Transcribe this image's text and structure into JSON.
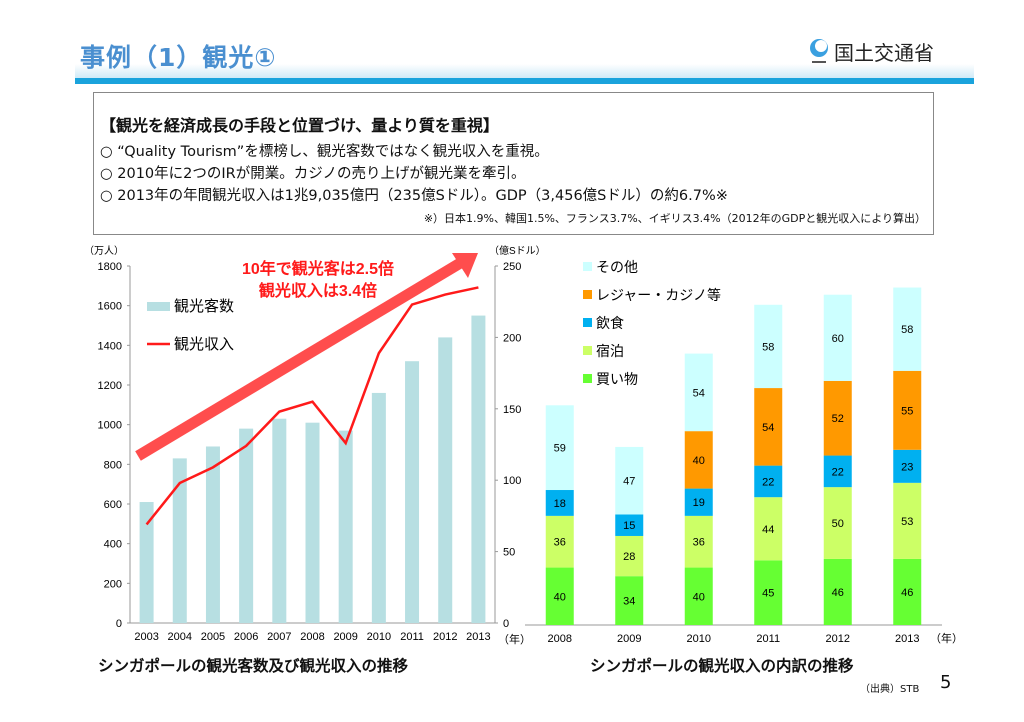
{
  "header": {
    "title": "事例（1）観光①",
    "logo_text": "国土交通省"
  },
  "summary": {
    "heading": "【観光を経済成長の手段と位置づけ、量より質を重視】",
    "bullets": [
      "○ “Quality Tourism”を標榜し、観光客数ではなく観光収入を重視。",
      "○ 2010年に2つのIRが開業。カジノの売り上げが観光業を牽引。",
      "○ 2013年の年間観光収入は1兆9,035億円（235億Sドル）。GDP（3,456億Sドル）の約6.7%※"
    ],
    "note": "※）日本1.9%、韓国1.5%、フランス3.7%、イギリス3.4%（2012年のGDPと観光収入により算出）"
  },
  "chart_data": [
    {
      "type": "bar+line",
      "title": "シンガポールの観光客数及び観光収入の推移",
      "categories": [
        "2003",
        "2004",
        "2005",
        "2006",
        "2007",
        "2008",
        "2009",
        "2010",
        "2011",
        "2012",
        "2013"
      ],
      "xlabel": "（年）",
      "ylabel_left": "（万人）",
      "ylim_left": [
        0,
        1800
      ],
      "yticks_left": [
        0,
        200,
        400,
        600,
        800,
        1000,
        1200,
        1400,
        1600,
        1800
      ],
      "ylabel_right": "（億Sドル）",
      "ylim_right": [
        0,
        250
      ],
      "yticks_right": [
        0,
        50,
        100,
        150,
        200,
        250
      ],
      "series": [
        {
          "name": "観光客数",
          "axis": "left",
          "kind": "bar",
          "color": "#b7dfe2",
          "values": [
            610,
            830,
            890,
            980,
            1030,
            1010,
            970,
            1160,
            1320,
            1440,
            1550
          ]
        },
        {
          "name": "観光収入",
          "axis": "right",
          "kind": "line",
          "color": "#ff1a1a",
          "values": [
            69,
            98,
            109,
            124,
            148,
            155,
            126,
            189,
            223,
            230,
            235
          ]
        }
      ],
      "annotation": [
        "10年で観光客は2.5倍",
        "観光収入は3.4倍"
      ],
      "legend": "top-left"
    },
    {
      "type": "stacked-bar",
      "title": "シンガポールの観光収入の内訳の推移",
      "categories": [
        "2008",
        "2009",
        "2010",
        "2011",
        "2012",
        "2013"
      ],
      "xlabel": "（年）",
      "ylabel": "（億Sドル）",
      "ylim": [
        0,
        250
      ],
      "yticks": [
        0,
        50,
        100,
        150,
        200,
        250
      ],
      "series": [
        {
          "name": "買い物",
          "color": "#66ff33",
          "values": [
            40,
            34,
            40,
            45,
            46,
            46
          ]
        },
        {
          "name": "宿泊",
          "color": "#ccff66",
          "values": [
            36,
            28,
            36,
            44,
            50,
            53
          ]
        },
        {
          "name": "飲食",
          "color": "#00b0f0",
          "values": [
            18,
            15,
            19,
            22,
            22,
            23
          ]
        },
        {
          "name": "レジャー・カジノ等",
          "color": "#ff9900",
          "values": [
            0,
            0,
            40,
            54,
            52,
            55
          ]
        },
        {
          "name": "その他",
          "color": "#ccffff",
          "values": [
            59,
            47,
            54,
            58,
            60,
            58
          ]
        }
      ],
      "legend": "top-left"
    }
  ],
  "footer": {
    "source": "（出典）STB",
    "page": "5"
  }
}
